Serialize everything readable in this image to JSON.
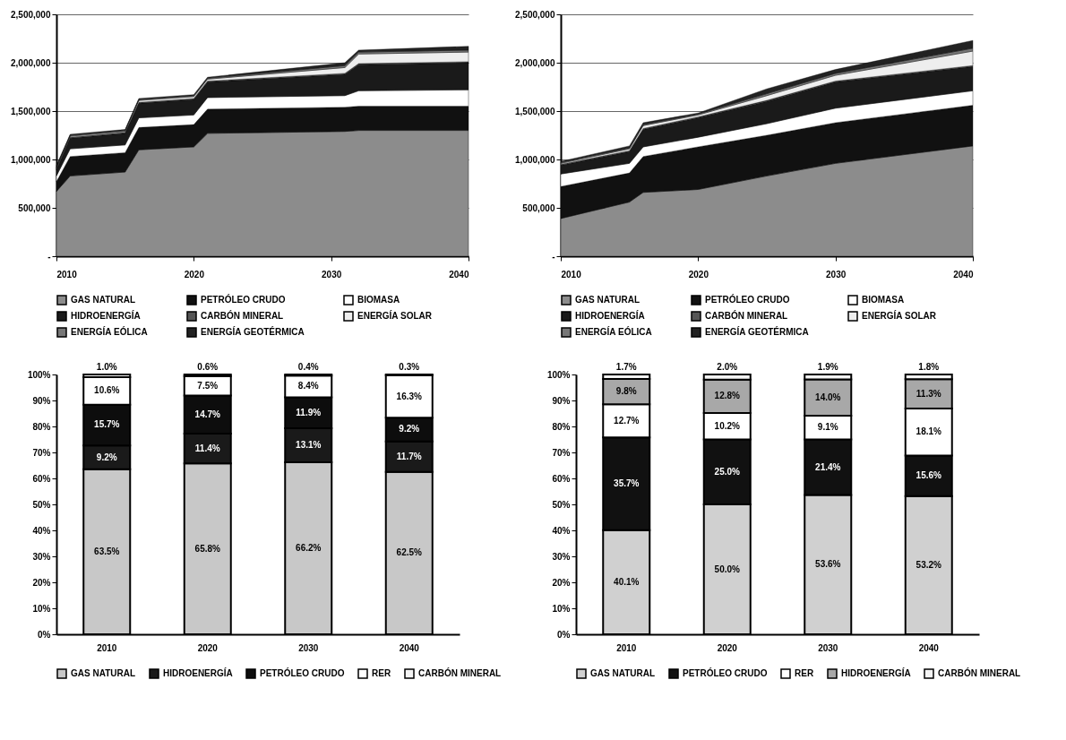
{
  "chart_data": [
    {
      "type": "area",
      "stacked": true,
      "x": [
        2010,
        2011,
        2015,
        2016,
        2020,
        2021,
        2031,
        2032,
        2040
      ],
      "xlim": [
        2010,
        2040
      ],
      "xticks": [
        2010,
        2020,
        2030,
        2040
      ],
      "ylim": [
        0,
        2500000
      ],
      "yticks": [
        {
          "value": 0,
          "label": "-"
        },
        {
          "value": 500000,
          "label": "500,000"
        },
        {
          "value": 1000000,
          "label": "1,000,000"
        },
        {
          "value": 1500000,
          "label": "1,500,000"
        },
        {
          "value": 2000000,
          "label": "2,000,000"
        },
        {
          "value": 2500000,
          "label": "2,500,000"
        }
      ],
      "grid": "y",
      "legend": "bottom",
      "series": [
        {
          "name": "GAS NATURAL",
          "color": "#8c8c8c",
          "values": [
            670000,
            830000,
            870000,
            1100000,
            1130000,
            1270000,
            1290000,
            1300000,
            1300000
          ]
        },
        {
          "name": "PETRÓLEO CRUDO",
          "color": "#111111",
          "values": [
            100000,
            200000,
            200000,
            230000,
            230000,
            250000,
            250000,
            250000,
            250000
          ]
        },
        {
          "name": "BIOMASA",
          "color": "#ffffff",
          "values": [
            60000,
            80000,
            80000,
            100000,
            100000,
            120000,
            120000,
            160000,
            170000
          ]
        },
        {
          "name": "HIDROENERGÍA",
          "color": "#1a1a1a",
          "values": [
            60000,
            110000,
            120000,
            150000,
            160000,
            160000,
            220000,
            270000,
            280000
          ]
        },
        {
          "name": "CARBÓN MINERAL",
          "color": "#555555",
          "values": [
            10000,
            10000,
            10000,
            10000,
            10000,
            10000,
            10000,
            10000,
            10000
          ]
        },
        {
          "name": "ENERGÍA SOLAR",
          "color": "#eeeeee",
          "values": [
            10000,
            10000,
            10000,
            20000,
            20000,
            20000,
            60000,
            100000,
            100000
          ]
        },
        {
          "name": "ENERGÍA EÓLICA",
          "color": "#777777",
          "values": [
            10000,
            10000,
            10000,
            10000,
            10000,
            10000,
            20000,
            20000,
            20000
          ]
        },
        {
          "name": "ENERGÍA GEOTÉRMICA",
          "color": "#222222",
          "values": [
            20000,
            10000,
            10000,
            10000,
            10000,
            10000,
            30000,
            20000,
            40000
          ]
        }
      ]
    },
    {
      "type": "area",
      "stacked": true,
      "x": [
        2010,
        2015,
        2016,
        2020,
        2025,
        2030,
        2040
      ],
      "xlim": [
        2010,
        2040
      ],
      "xticks": [
        2010,
        2020,
        2030,
        2040
      ],
      "ylim": [
        0,
        2500000
      ],
      "yticks": [
        {
          "value": 0,
          "label": "-"
        },
        {
          "value": 500000,
          "label": "500,000"
        },
        {
          "value": 1000000,
          "label": "1,000,000"
        },
        {
          "value": 1500000,
          "label": "1,500,000"
        },
        {
          "value": 2000000,
          "label": "2,000,000"
        },
        {
          "value": 2500000,
          "label": "2,500,000"
        }
      ],
      "grid": "y",
      "legend": "bottom",
      "series": [
        {
          "name": "GAS NATURAL",
          "color": "#8c8c8c",
          "values": [
            390000,
            560000,
            660000,
            690000,
            830000,
            960000,
            1140000
          ]
        },
        {
          "name": "PETRÓLEO CRUDO",
          "color": "#111111",
          "values": [
            330000,
            300000,
            370000,
            440000,
            420000,
            420000,
            420000
          ]
        },
        {
          "name": "BIOMASA",
          "color": "#ffffff",
          "values": [
            130000,
            100000,
            100000,
            100000,
            120000,
            150000,
            150000
          ]
        },
        {
          "name": "HIDROENERGÍA",
          "color": "#1a1a1a",
          "values": [
            90000,
            120000,
            180000,
            200000,
            230000,
            270000,
            250000
          ]
        },
        {
          "name": "CARBÓN MINERAL",
          "color": "#555555",
          "values": [
            10000,
            10000,
            10000,
            10000,
            10000,
            10000,
            10000
          ]
        },
        {
          "name": "ENERGÍA SOLAR",
          "color": "#eeeeee",
          "values": [
            10000,
            20000,
            30000,
            20000,
            50000,
            60000,
            150000
          ]
        },
        {
          "name": "ENERGÍA EÓLICA",
          "color": "#777777",
          "values": [
            10000,
            10000,
            10000,
            10000,
            20000,
            20000,
            30000
          ]
        },
        {
          "name": "ENERGÍA GEOTÉRMICA",
          "color": "#222222",
          "values": [
            10000,
            20000,
            20000,
            10000,
            50000,
            40000,
            80000
          ]
        }
      ]
    },
    {
      "type": "bar",
      "stacked": true,
      "categories": [
        "2010",
        "2020",
        "2030",
        "2040"
      ],
      "ylim": [
        0,
        100
      ],
      "yticks": [
        {
          "value": 0,
          "label": "0%"
        },
        {
          "value": 10,
          "label": "10%"
        },
        {
          "value": 20,
          "label": "20%"
        },
        {
          "value": 30,
          "label": "30%"
        },
        {
          "value": 40,
          "label": "40%"
        },
        {
          "value": 50,
          "label": "50%"
        },
        {
          "value": 60,
          "label": "60%"
        },
        {
          "value": 70,
          "label": "70%"
        },
        {
          "value": 80,
          "label": "80%"
        },
        {
          "value": 90,
          "label": "90%"
        },
        {
          "value": 100,
          "label": "100%"
        }
      ],
      "legend": "bottom",
      "series": [
        {
          "name": "GAS NATURAL",
          "color": "#c8c8c8",
          "values": [
            63.5,
            65.8,
            66.2,
            62.5
          ],
          "value_labels": [
            "63.5%",
            "65.8%",
            "66.2%",
            "62.5%"
          ]
        },
        {
          "name": "HIDROENERGÍA",
          "color": "#1a1a1a",
          "values": [
            9.2,
            11.4,
            13.1,
            11.7
          ],
          "value_labels": [
            "9.2%",
            "11.4%",
            "13.1%",
            "11.7%"
          ]
        },
        {
          "name": "PETRÓLEO CRUDO",
          "color": "#0d0d0d",
          "values": [
            15.7,
            14.7,
            11.9,
            9.2
          ],
          "value_labels": [
            "15.7%",
            "14.7%",
            "11.9%",
            "9.2%"
          ]
        },
        {
          "name": "RER",
          "color": "#ffffff",
          "values": [
            10.6,
            7.5,
            8.4,
            16.3
          ],
          "value_labels": [
            "10.6%",
            "7.5%",
            "8.4%",
            "16.3%"
          ]
        },
        {
          "name": "CARBÓN MINERAL",
          "color": "#f4f4f4",
          "values": [
            1.0,
            0.6,
            0.4,
            0.3
          ],
          "value_labels": [
            "1.0%",
            "0.6%",
            "0.4%",
            "0.3%"
          ]
        }
      ]
    },
    {
      "type": "bar",
      "stacked": true,
      "categories": [
        "2010",
        "2020",
        "2030",
        "2040"
      ],
      "ylim": [
        0,
        100
      ],
      "yticks": [
        {
          "value": 0,
          "label": "0%"
        },
        {
          "value": 10,
          "label": "10%"
        },
        {
          "value": 20,
          "label": "20%"
        },
        {
          "value": 30,
          "label": "30%"
        },
        {
          "value": 40,
          "label": "40%"
        },
        {
          "value": 50,
          "label": "50%"
        },
        {
          "value": 60,
          "label": "60%"
        },
        {
          "value": 70,
          "label": "70%"
        },
        {
          "value": 80,
          "label": "80%"
        },
        {
          "value": 90,
          "label": "90%"
        },
        {
          "value": 100,
          "label": "100%"
        }
      ],
      "legend": "bottom",
      "series": [
        {
          "name": "GAS NATURAL",
          "color": "#d0d0d0",
          "values": [
            40.1,
            50.0,
            53.6,
            53.2
          ],
          "value_labels": [
            "40.1%",
            "50.0%",
            "53.6%",
            "53.2%"
          ]
        },
        {
          "name": "PETRÓLEO CRUDO",
          "color": "#111111",
          "values": [
            35.7,
            25.0,
            21.4,
            15.6
          ],
          "value_labels": [
            "35.7%",
            "25.0%",
            "21.4%",
            "15.6%"
          ]
        },
        {
          "name": "RER",
          "color": "#ffffff",
          "values": [
            12.7,
            10.2,
            9.1,
            18.1
          ],
          "value_labels": [
            "12.7%",
            "10.2%",
            "9.1%",
            "18.1%"
          ]
        },
        {
          "name": "HIDROENERGÍA",
          "color": "#a8a8a8",
          "values": [
            9.8,
            12.8,
            14.0,
            11.3
          ],
          "value_labels": [
            "9.8%",
            "12.8%",
            "14.0%",
            "11.3%"
          ]
        },
        {
          "name": "CARBÓN MINERAL",
          "color": "#f4f4f4",
          "values": [
            1.7,
            2.0,
            1.9,
            1.8
          ],
          "value_labels": [
            "1.7%",
            "2.0%",
            "1.9%",
            "1.8%"
          ]
        }
      ]
    }
  ]
}
